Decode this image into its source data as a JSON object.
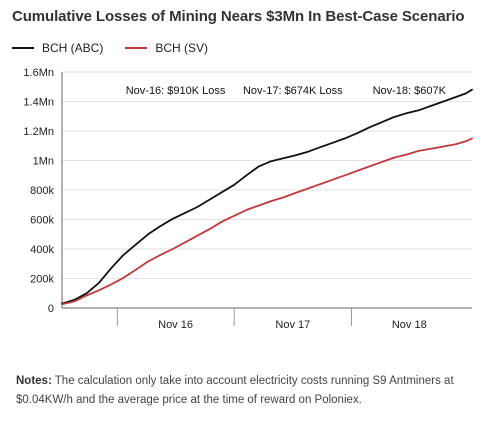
{
  "title": "Cumulative Losses of Mining Nears $3Mn In Best-Case Scenario",
  "colors": {
    "abc": "#111111",
    "sv": "#c0393b",
    "grid": "#e2e2e2",
    "axis": "#666666"
  },
  "notes": {
    "label": "Notes:",
    "text": " The calculation only take into account electricity costs running S9 Antminers at $0.04KW/h and the average price at the time of reward on Poloniex."
  },
  "chart_data": {
    "type": "line",
    "title": "Cumulative Losses of Mining Nears $3Mn In Best-Case Scenario",
    "xlabel": "",
    "ylabel": "",
    "ylim": [
      0,
      1600000
    ],
    "xlim": [
      0,
      100
    ],
    "grid": "horizontal",
    "legend": "top-left",
    "yticks": [
      {
        "value": 0,
        "label": "0"
      },
      {
        "value": 200000,
        "label": "200k"
      },
      {
        "value": 400000,
        "label": "400k"
      },
      {
        "value": 600000,
        "label": "600k"
      },
      {
        "value": 800000,
        "label": "800k"
      },
      {
        "value": 1000000,
        "label": "1Mn"
      },
      {
        "value": 1200000,
        "label": "1.2Mn"
      },
      {
        "value": 1400000,
        "label": "1.4Mn"
      },
      {
        "value": 1600000,
        "label": "1.6Mn"
      }
    ],
    "xticks": [
      {
        "value": 27.7,
        "label": "Nov 16"
      },
      {
        "value": 56.3,
        "label": "Nov 17"
      },
      {
        "value": 84.7,
        "label": "Nov 18"
      }
    ],
    "xdividers": [
      13.5,
      42.0,
      70.6
    ],
    "annotations": [
      {
        "text": "Nov-16: $910K Loss",
        "x": 27.7
      },
      {
        "text": "Nov-17: $674K Loss",
        "x": 56.3
      },
      {
        "text": "Nov-18: $607K",
        "x": 84.7
      }
    ],
    "series": [
      {
        "name": "BCH (ABC)",
        "color": "#111111",
        "x": [
          0,
          3,
          6,
          9,
          12,
          15,
          18,
          21,
          24,
          27,
          30,
          33,
          36,
          39,
          42,
          45,
          48,
          51,
          54,
          57,
          60,
          63,
          66,
          69,
          72,
          75,
          78,
          81,
          84,
          87,
          90,
          93,
          96,
          98.5,
          100
        ],
        "y": [
          30000,
          55000,
          100000,
          170000,
          270000,
          360000,
          430000,
          500000,
          555000,
          605000,
          645000,
          685000,
          735000,
          785000,
          835000,
          900000,
          960000,
          995000,
          1015000,
          1035000,
          1060000,
          1090000,
          1120000,
          1150000,
          1185000,
          1225000,
          1260000,
          1295000,
          1320000,
          1340000,
          1370000,
          1400000,
          1430000,
          1455000,
          1480000
        ]
      },
      {
        "name": "BCH (SV)",
        "color": "#c0393b",
        "x": [
          0,
          3,
          6,
          9,
          12,
          15,
          18,
          21,
          24,
          27,
          30,
          33,
          36,
          39,
          42,
          45,
          48,
          51,
          54,
          57,
          60,
          63,
          66,
          69,
          72,
          75,
          78,
          81,
          84,
          87,
          90,
          93,
          96,
          98.5,
          100
        ],
        "y": [
          25000,
          45000,
          85000,
          120000,
          160000,
          205000,
          260000,
          315000,
          360000,
          400000,
          445000,
          490000,
          535000,
          585000,
          625000,
          665000,
          695000,
          725000,
          750000,
          780000,
          810000,
          840000,
          870000,
          900000,
          930000,
          960000,
          990000,
          1020000,
          1040000,
          1065000,
          1080000,
          1095000,
          1110000,
          1130000,
          1150000
        ]
      }
    ]
  }
}
